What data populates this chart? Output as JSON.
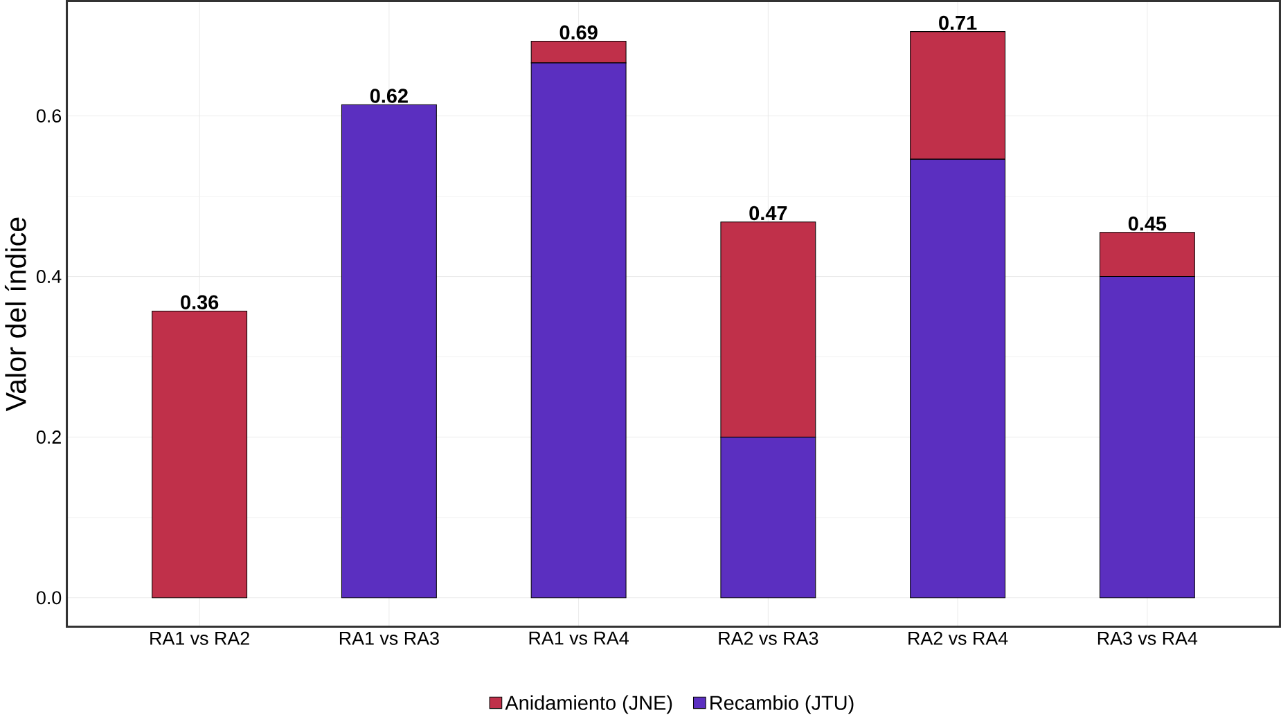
{
  "chart_data": {
    "type": "bar",
    "stacked": true,
    "ylabel": "Valor del índice",
    "categories": [
      "RA1 vs RA2",
      "RA1 vs RA3",
      "RA1 vs RA4",
      "RA2 vs RA3",
      "RA2 vs RA4",
      "RA3 vs RA4"
    ],
    "series": [
      {
        "name": "Recambio (JTU)",
        "color": "#5b2fc0",
        "values": [
          0,
          0.614,
          0.666,
          0.2,
          0.546,
          0.4
        ]
      },
      {
        "name": "Anidamiento (JNE)",
        "color": "#c0304a",
        "values": [
          0.357,
          0,
          0.027,
          0.268,
          0.159,
          0.055
        ]
      }
    ],
    "totals": [
      "0.36",
      "0.62",
      "0.69",
      "0.47",
      "0.71",
      "0.45"
    ],
    "ylim": [
      -0.036,
      0.743
    ],
    "yticks": [
      {
        "value": 0,
        "label": "0.0"
      },
      0.2,
      0.4,
      0.6
    ],
    "grid": true,
    "legend": "bottom"
  }
}
